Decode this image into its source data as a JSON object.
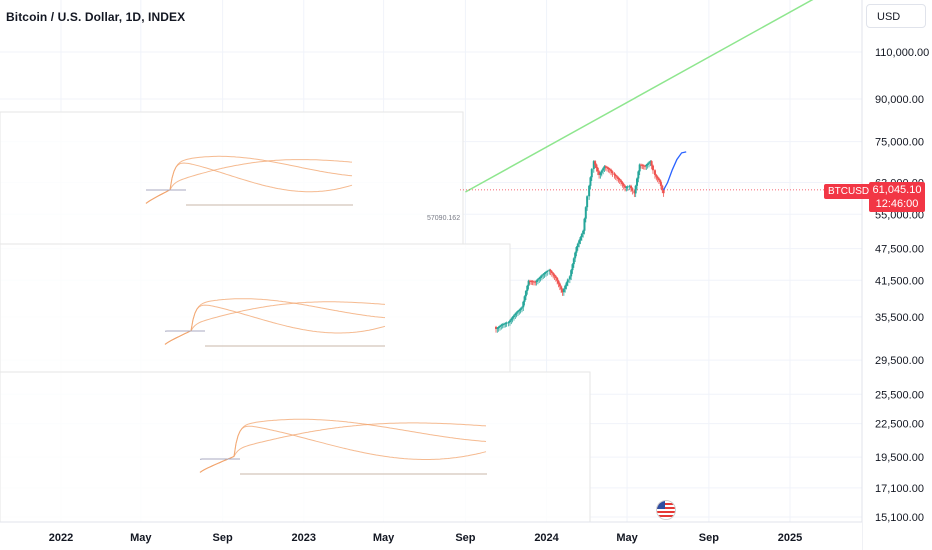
{
  "header": {
    "title": "Bitcoin / U.S. Dollar, 1D, INDEX"
  },
  "currency_button": {
    "label": "USD"
  },
  "price_badge": {
    "symbol": "BTCUSD",
    "price": "61,045.10",
    "countdown": "12:46:00"
  },
  "overlay_label": "57090.162",
  "flag_icon": "us-flag-icon",
  "colors": {
    "candle_up": "#26a69a",
    "candle_down": "#ef5350",
    "trend_line": "#8ee68e",
    "projection": "#2962ff",
    "overlay": "#f2a36b",
    "overlay_gray": "#a8aac0",
    "price_line": "#f23645"
  },
  "chart_data": {
    "type": "line",
    "title": "Bitcoin / U.S. Dollar, 1D, INDEX",
    "y_scale": "log",
    "y_ticks": [
      "110,000.00",
      "90,000.00",
      "75,000.00",
      "63,000.00",
      "55,000.00",
      "47,500.00",
      "41,500.00",
      "35,500.00",
      "29,500.00",
      "25,500.00",
      "22,500.00",
      "19,500.00",
      "17,100.00",
      "15,100.00"
    ],
    "y_tick_values": [
      110000,
      90000,
      75000,
      63000,
      55000,
      47500,
      41500,
      35500,
      29500,
      25500,
      22500,
      19500,
      17100,
      15100
    ],
    "x_ticks": [
      "2022",
      "May",
      "Sep",
      "2023",
      "May",
      "Sep",
      "2024",
      "May",
      "Sep",
      "2025"
    ],
    "x_tick_dates": [
      "2022-01-01",
      "2022-05-01",
      "2022-09-01",
      "2023-01-01",
      "2023-05-01",
      "2023-09-01",
      "2024-01-01",
      "2024-05-01",
      "2024-09-01",
      "2025-01-01"
    ],
    "last_price": 61045.1,
    "series": [
      {
        "kind": "price",
        "x": [
          "2023-10-15",
          "2023-10-25",
          "2023-11-05",
          "2023-11-15",
          "2023-11-25",
          "2023-12-05",
          "2023-12-15",
          "2023-12-25",
          "2024-01-05",
          "2024-01-15",
          "2024-01-25",
          "2024-02-05",
          "2024-02-15",
          "2024-02-25",
          "2024-03-05",
          "2024-03-12",
          "2024-03-20",
          "2024-03-28",
          "2024-04-05",
          "2024-04-12",
          "2024-04-20",
          "2024-04-28",
          "2024-05-05",
          "2024-05-12",
          "2024-05-20",
          "2024-05-28",
          "2024-06-05",
          "2024-06-12",
          "2024-06-20",
          "2024-06-25"
        ],
        "y": [
          34000,
          34800,
          35200,
          36500,
          37500,
          42000,
          41800,
          43000,
          44000,
          42500,
          40000,
          42800,
          48500,
          52000,
          63000,
          70000,
          66000,
          68500,
          67500,
          66000,
          64500,
          62500,
          63000,
          61000,
          69000,
          68500,
          70000,
          66000,
          64000,
          61045
        ]
      },
      {
        "kind": "projection",
        "x": [
          "2024-06-25",
          "2024-07-01",
          "2024-07-08",
          "2024-07-15",
          "2024-07-22",
          "2024-07-29"
        ],
        "y": [
          61045,
          63000,
          66500,
          69500,
          71500,
          71800
        ]
      }
    ],
    "trend_line": {
      "from": [
        "2023-09-01",
        60500
      ],
      "to": [
        "2025-02-15",
        140000
      ]
    }
  }
}
